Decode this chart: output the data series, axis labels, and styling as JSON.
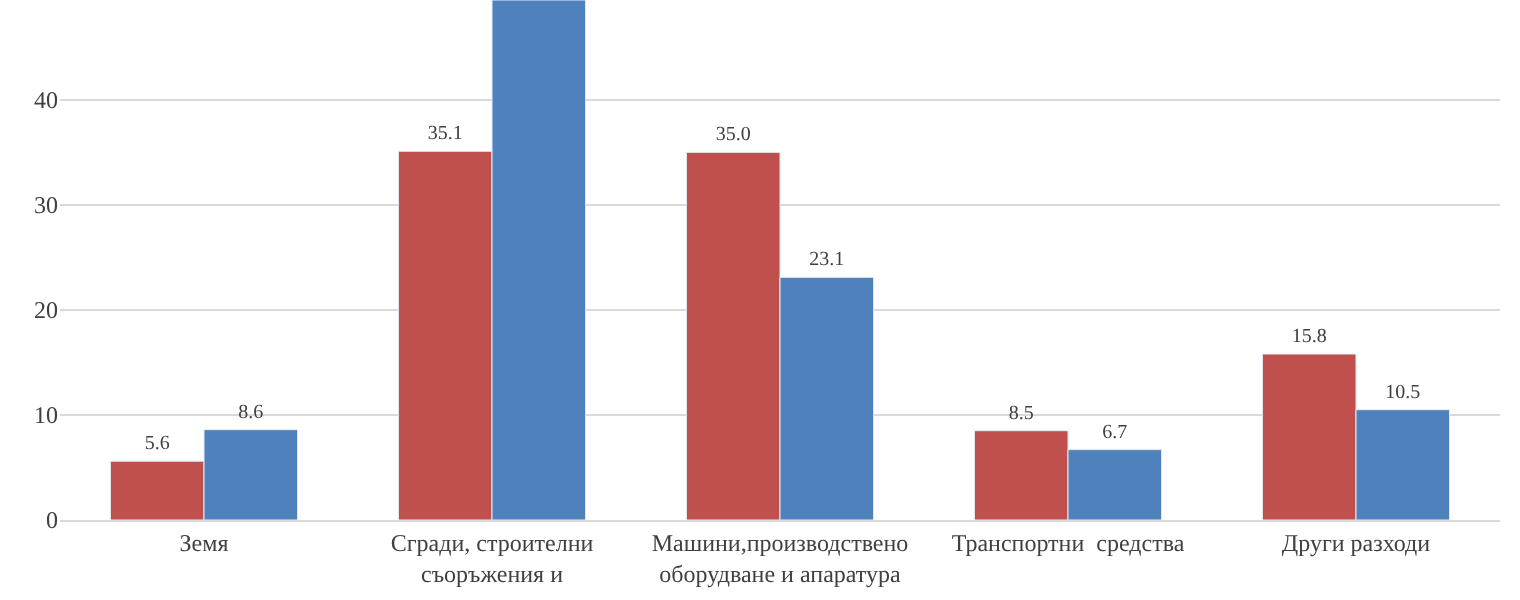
{
  "chart_data": {
    "type": "bar",
    "categories": [
      "Земя",
      "Сгради, строителни\nсъоръжения и",
      "Машини,производствено\nоборудване и апаратура",
      "Транспортни  средства",
      "Други разходи"
    ],
    "series": [
      {
        "color": "#c0504d",
        "values": [
          5.6,
          35.1,
          35.0,
          8.5,
          15.8
        ],
        "value_labels": [
          "5.6",
          "35.1",
          "35.0",
          "8.5",
          "15.8"
        ]
      },
      {
        "color": "#4f81bd",
        "values": [
          8.6,
          49.5,
          23.1,
          6.7,
          10.5
        ],
        "value_labels": [
          "8.6",
          null,
          "23.1",
          "6.7",
          "10.5"
        ]
      }
    ],
    "ylim": [
      0,
      49.5
    ],
    "yticks": [
      0,
      10,
      20,
      30,
      40
    ],
    "grid": "y",
    "legend": false
  }
}
